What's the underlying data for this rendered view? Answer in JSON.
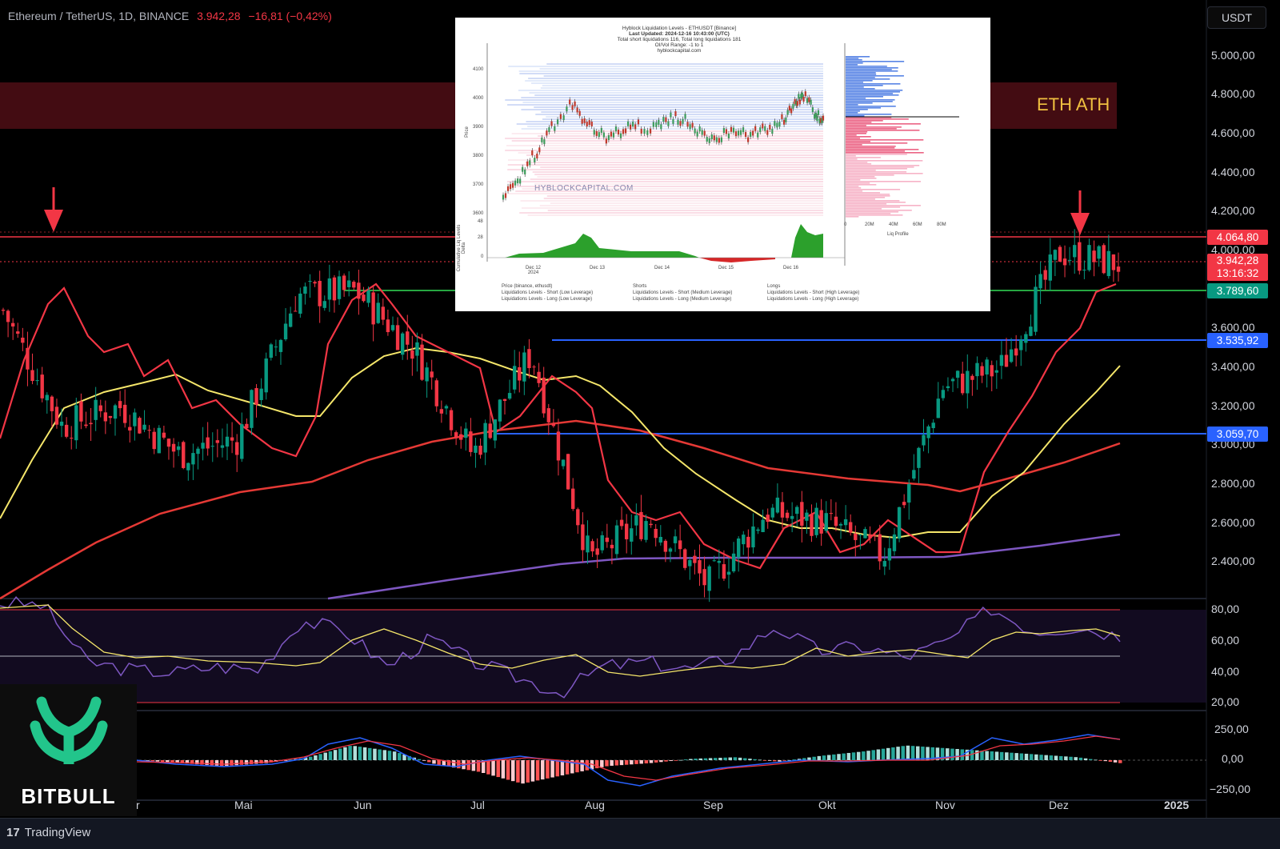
{
  "header": {
    "symbol": "Ethereum / TetherUS, 1D, BINANCE",
    "price": "3.942,28",
    "change": "−16,81 (−0,42%)"
  },
  "currency_button": "USDT",
  "ath_label": "ETH ATH",
  "price_tags": {
    "resistance": "4.064,80",
    "last_price": "3.942,28",
    "countdown": "13:16:32",
    "green_level": "3.789,60",
    "blue_upper": "3.535,92",
    "blue_lower": "3.059,70"
  },
  "yaxis": [
    "5.000,00",
    "4.800,00",
    "4.600,00",
    "4.400,00",
    "4.200,00",
    "4.000,00",
    "3.600,00",
    "3.400,00",
    "3.200,00",
    "3.000,00",
    "2.800,00",
    "2.600,00",
    "2.400,00"
  ],
  "rsi_axis": [
    "80,00",
    "60,00",
    "40,00",
    "20,00"
  ],
  "macd_axis": [
    "250,00",
    "0,00",
    "−250,00"
  ],
  "xaxis": [
    "r",
    "Mai",
    "Jun",
    "Jul",
    "Aug",
    "Sep",
    "Okt",
    "Nov",
    "Dez",
    "2025"
  ],
  "footer_brand": "TradingView",
  "watermark_brand": "BITBULL",
  "colors": {
    "up": "#089981",
    "down": "#f23645",
    "ma_fast": "#f23645",
    "ma_yellow": "#f5e66a",
    "ma_200": "#e53935",
    "ma_purple": "#7e57c2",
    "blue_level": "#2962ff",
    "green_level": "#26a641",
    "ath_zone": "#5a1018"
  },
  "chart_data": [
    {
      "type": "candlestick",
      "title": "Ethereum / TetherUS, 1D, BINANCE",
      "ylim": [
        2200,
        5150
      ],
      "x_range": [
        "2024-04",
        "2024-12-16"
      ],
      "series_approx_close": [
        {
          "x": "2024-04-08",
          "y": 3700
        },
        {
          "x": "2024-04-15",
          "y": 3100
        },
        {
          "x": "2024-04-22",
          "y": 3200
        },
        {
          "x": "2024-05-01",
          "y": 2950
        },
        {
          "x": "2024-05-15",
          "y": 3030
        },
        {
          "x": "2024-05-25",
          "y": 3780
        },
        {
          "x": "2024-06-05",
          "y": 3800
        },
        {
          "x": "2024-06-20",
          "y": 3500
        },
        {
          "x": "2024-07-05",
          "y": 2950
        },
        {
          "x": "2024-07-20",
          "y": 3480
        },
        {
          "x": "2024-08-05",
          "y": 2400
        },
        {
          "x": "2024-08-20",
          "y": 2620
        },
        {
          "x": "2024-09-06",
          "y": 2270
        },
        {
          "x": "2024-09-25",
          "y": 2650
        },
        {
          "x": "2024-10-15",
          "y": 2600
        },
        {
          "x": "2024-11-05",
          "y": 2420
        },
        {
          "x": "2024-11-12",
          "y": 3300
        },
        {
          "x": "2024-11-25",
          "y": 3400
        },
        {
          "x": "2024-12-08",
          "y": 4000
        },
        {
          "x": "2024-12-16",
          "y": 3942.28
        }
      ],
      "moving_averages": [
        {
          "color": "yellow",
          "values_approx": [
            2600,
            3200,
            3300,
            3200,
            3450,
            3550,
            3400,
            3100,
            2750,
            2550,
            2520,
            2500,
            3400
          ]
        },
        {
          "color": "red_200",
          "values_approx": [
            2200,
            2700,
            2900,
            3050,
            3100,
            3050,
            2900,
            2850,
            2780,
            2850,
            3000
          ]
        },
        {
          "color": "purple",
          "values_approx": [
            2200,
            2350,
            2420,
            2430,
            2450,
            2550
          ]
        }
      ],
      "levels": [
        {
          "name": "resistance",
          "value": 4064.8,
          "color": "red"
        },
        {
          "name": "last_price",
          "value": 3942.28
        },
        {
          "name": "support_green",
          "value": 3789.6,
          "color": "green"
        },
        {
          "name": "support_blue_upper",
          "value": 3535.92,
          "color": "blue"
        },
        {
          "name": "support_blue_lower",
          "value": 3059.7,
          "color": "blue"
        }
      ],
      "annotations": [
        "ETH ATH"
      ]
    },
    {
      "type": "line",
      "name": "RSI",
      "ylim": [
        15,
        85
      ],
      "bands": [
        80,
        50,
        20
      ],
      "values_approx": [
        83,
        82,
        45,
        40,
        38,
        42,
        40,
        72,
        65,
        42,
        60,
        45,
        35,
        25,
        42,
        45,
        40,
        48,
        68,
        52,
        55,
        48,
        58,
        80,
        65,
        68,
        62
      ]
    },
    {
      "type": "bar",
      "name": "MACD",
      "ylim": [
        -300,
        300
      ],
      "values_approx": [
        0,
        -20,
        -40,
        -20,
        20,
        100,
        60,
        -30,
        -80,
        -160,
        -100,
        -40,
        -20,
        10,
        20,
        -10,
        30,
        60,
        100,
        80,
        60,
        40,
        20,
        -20
      ]
    },
    {
      "type": "liquidation-levels-inset",
      "title": "Hyblock Liquidation Levels - ETHUSDT [Binance]",
      "subtitle": [
        "Last Updated: 2024-12-16 10:43:00 (UTC)",
        "Total short liquidations 116, Total long liquidations 181",
        "OI/Vol Range: -1 to 1",
        "hyblockcapital.com"
      ],
      "y_ticks": [
        "4100",
        "4000",
        "3900",
        "3800",
        "3700",
        "3600"
      ],
      "y_label": "Price",
      "delta_label": "Cumulative Liq Levels Delta",
      "delta_ticks": [
        "48",
        "28",
        "0"
      ],
      "x_ticks": [
        "Dec 12\n2024",
        "Dec 13",
        "Dec 14",
        "Dec 15",
        "Dec 16"
      ],
      "profile_ticks": [
        "0",
        "20M",
        "40M",
        "60M",
        "80M"
      ],
      "profile_label": "Liq Profile",
      "watermark": "HYBLOCKCAPITAL.COM",
      "legend": [
        "Price (binance, ethusdt)",
        "Liquidations Levels - Short (Low Leverage)",
        "Liquidations Levels - Long (Low Leverage)",
        "Shorts",
        "Liquidations Levels - Short (Medium Leverage)",
        "Liquidations Levels - Long (Medium Leverage)",
        "Longs",
        "Liquidations Levels - Short (High Leverage)",
        "Liquidations Levels - Long (High Leverage)"
      ]
    }
  ]
}
